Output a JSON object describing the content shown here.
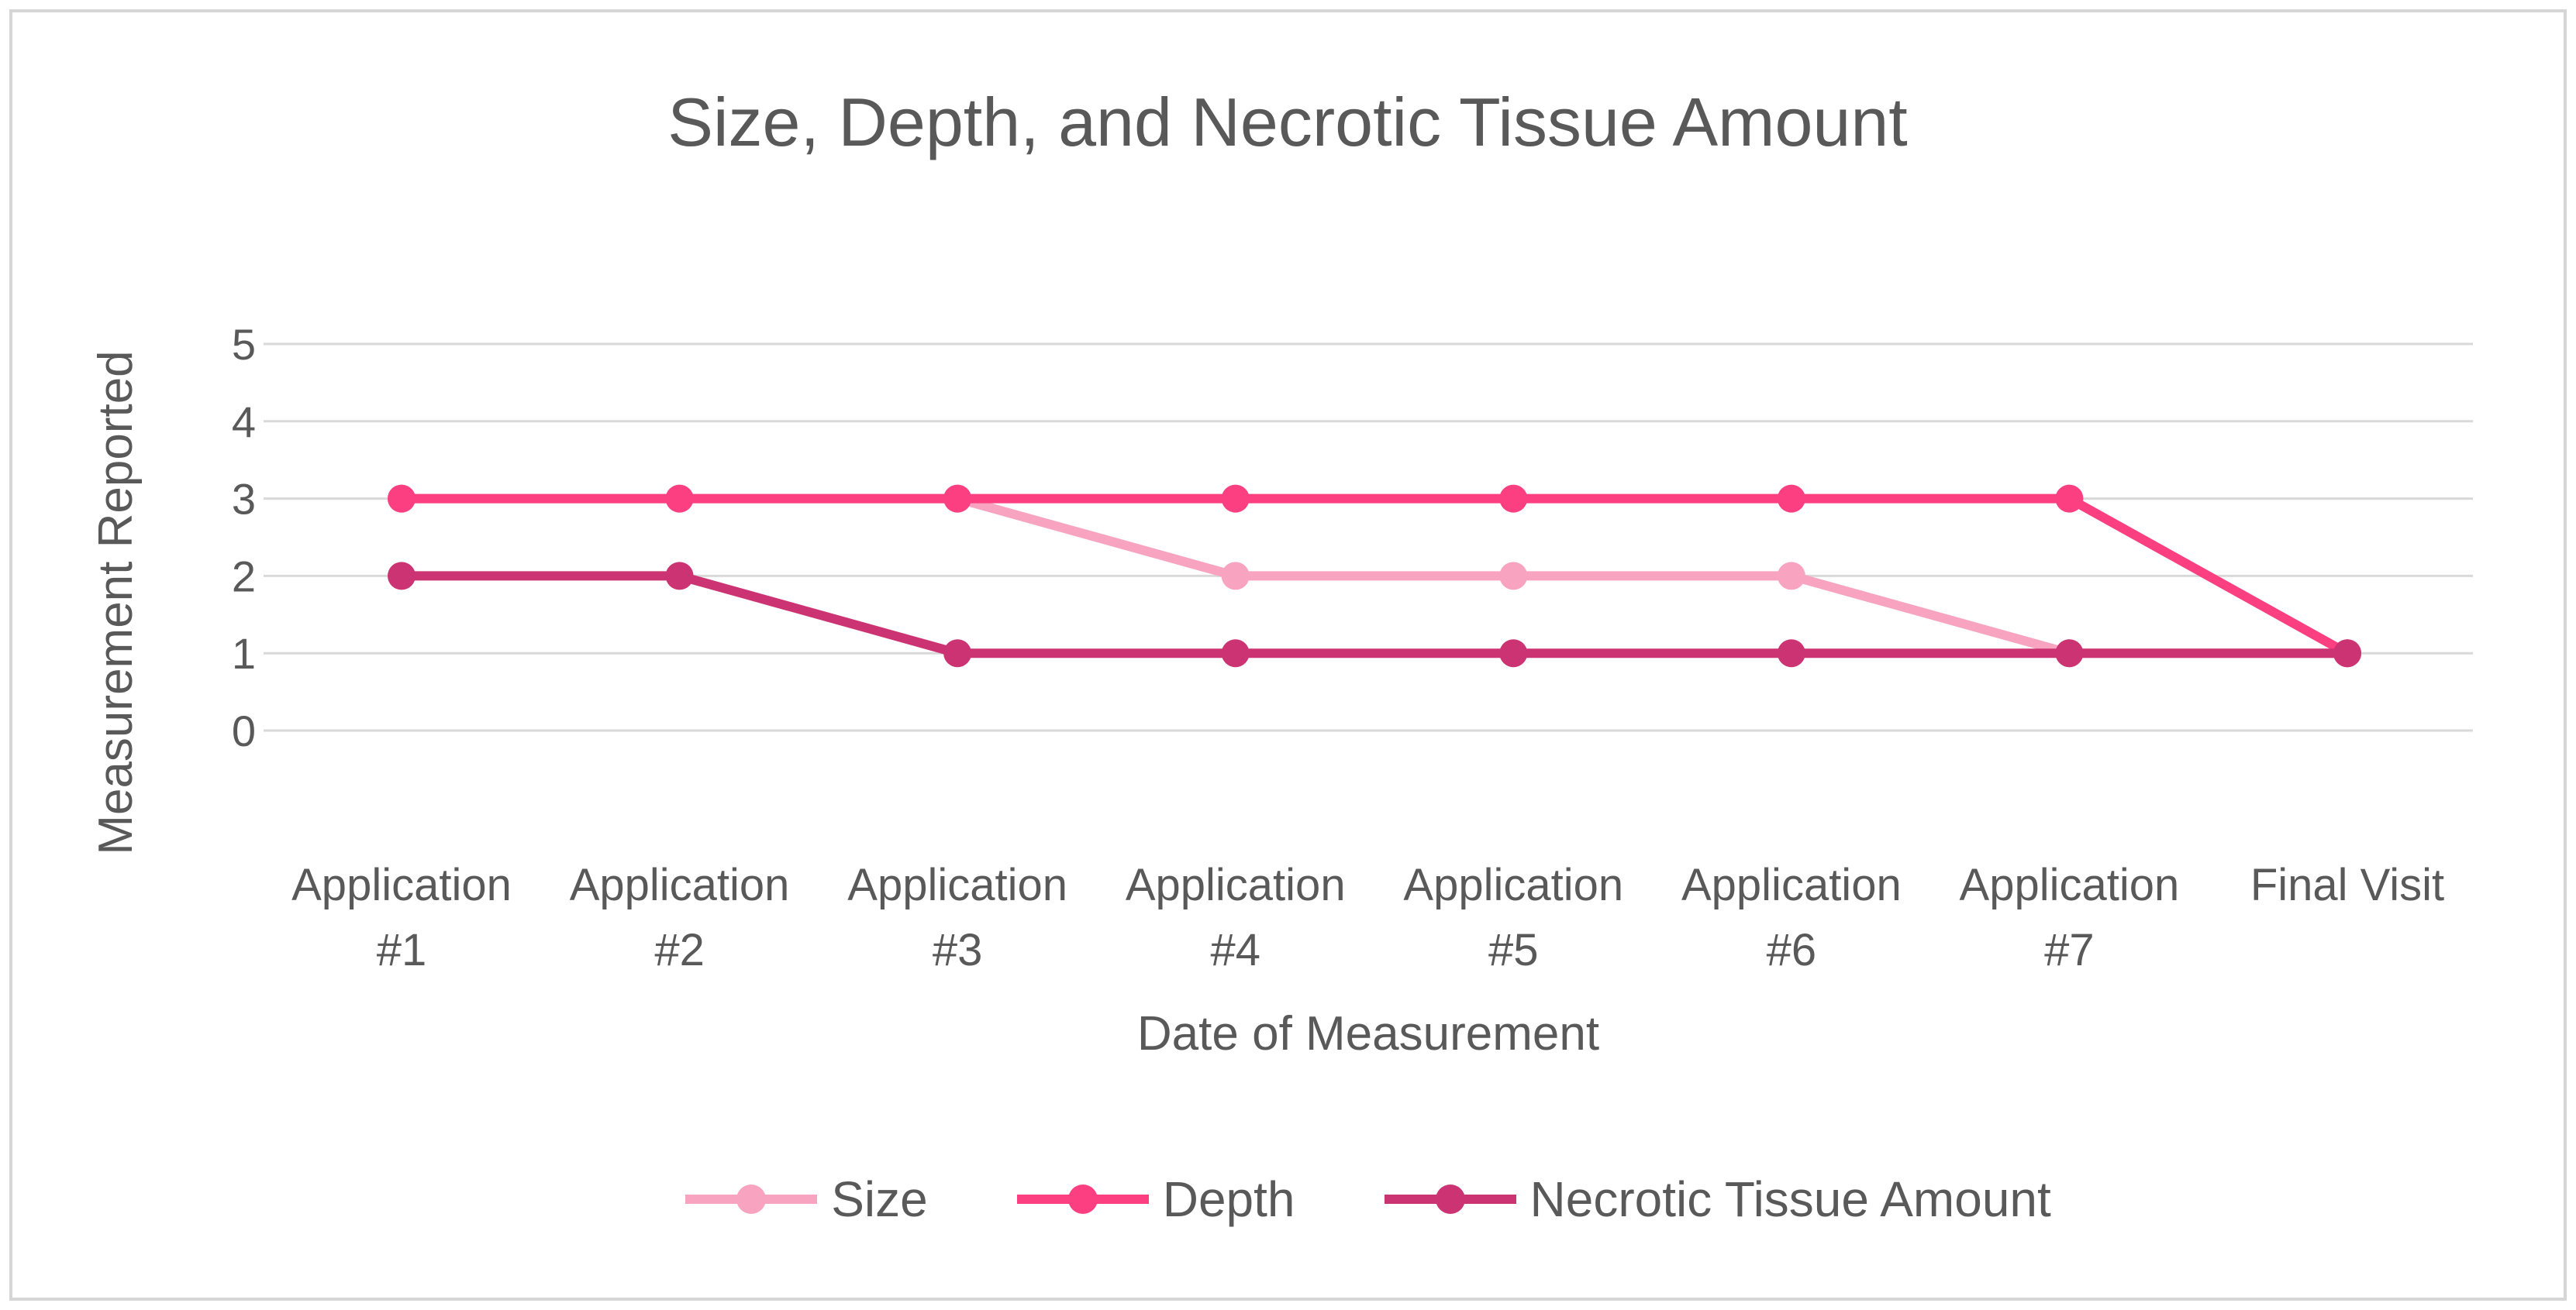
{
  "chart_data": {
    "type": "line",
    "title": "Size, Depth, and Necrotic Tissue Amount",
    "xlabel": "Date of Measurement",
    "ylabel": "Measurement Reported",
    "categories": [
      [
        "Application",
        "#1"
      ],
      [
        "Application",
        "#2"
      ],
      [
        "Application",
        "#3"
      ],
      [
        "Application",
        "#4"
      ],
      [
        "Application",
        "#5"
      ],
      [
        "Application",
        "#6"
      ],
      [
        "Application",
        "#7"
      ],
      [
        "Final Visit"
      ]
    ],
    "yticks": [
      0,
      1,
      2,
      3,
      4,
      5
    ],
    "ylim": [
      0,
      5
    ],
    "grid": true,
    "legend_position": "bottom",
    "series": [
      {
        "name": "Size",
        "color": "#F8A3C0",
        "values": [
          3,
          3,
          3,
          2,
          2,
          2,
          1,
          1
        ]
      },
      {
        "name": "Depth",
        "color": "#FB3F80",
        "values": [
          3,
          3,
          3,
          3,
          3,
          3,
          3,
          1
        ]
      },
      {
        "name": "Necrotic Tissue Amount",
        "color": "#CB3373",
        "values": [
          2,
          2,
          1,
          1,
          1,
          1,
          1,
          1
        ]
      }
    ],
    "colors": {
      "text": "#595959",
      "gridline": "#D9D9D9",
      "border": "#D6D6D6",
      "background": "#FFFFFF"
    }
  }
}
